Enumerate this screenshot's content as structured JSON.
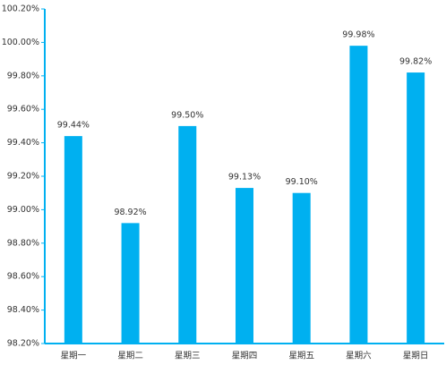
{
  "chart_data": {
    "type": "bar",
    "categories": [
      "星期一",
      "星期二",
      "星期三",
      "星期四",
      "星期五",
      "星期六",
      "星期日"
    ],
    "values": [
      99.44,
      98.92,
      99.5,
      99.13,
      99.1,
      99.98,
      99.82
    ],
    "value_labels": [
      "99.44%",
      "98.92%",
      "99.50%",
      "99.13%",
      "99.10%",
      "99.98%",
      "99.82%"
    ],
    "color": "#00b0f0",
    "ylim": [
      98.2,
      100.2
    ],
    "yticks": [
      {
        "value": 98.2,
        "label": "98.20%"
      },
      {
        "value": 98.4,
        "label": "98.40%"
      },
      {
        "value": 98.6,
        "label": "98.60%"
      },
      {
        "value": 98.8,
        "label": "98.80%"
      },
      {
        "value": 99.0,
        "label": "99.00%"
      },
      {
        "value": 99.2,
        "label": "99.20%"
      },
      {
        "value": 99.4,
        "label": "99.40%"
      },
      {
        "value": 99.6,
        "label": "99.60%"
      },
      {
        "value": 99.8,
        "label": "99.80%"
      },
      {
        "value": 100.0,
        "label": "100.00%"
      },
      {
        "value": 100.2,
        "label": "100.20%"
      }
    ],
    "grid": false
  }
}
